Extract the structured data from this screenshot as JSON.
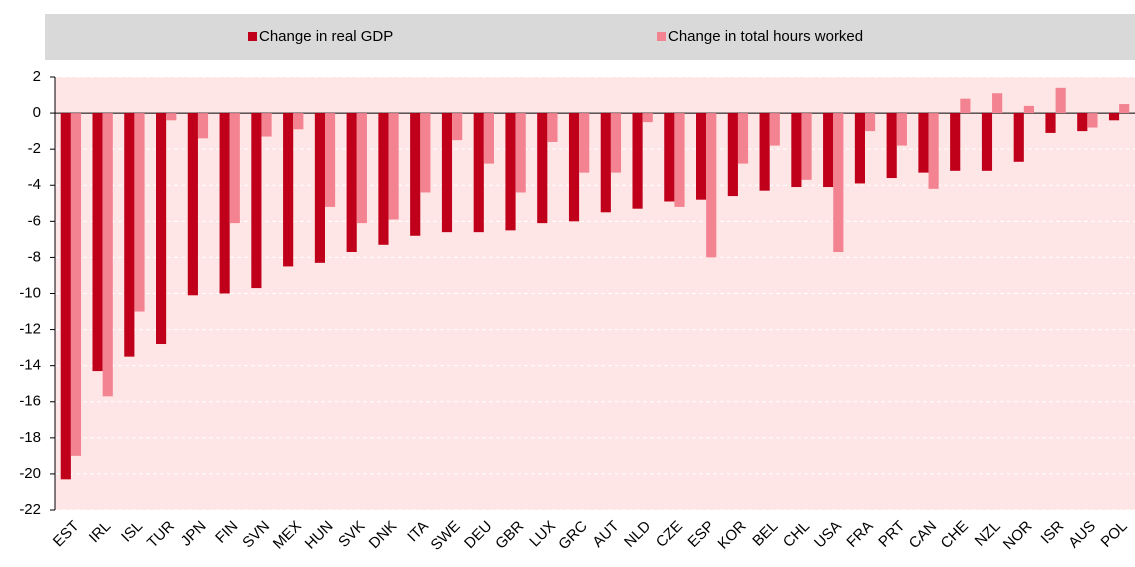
{
  "chart_data": {
    "type": "bar",
    "categories": [
      "EST",
      "IRL",
      "ISL",
      "TUR",
      "JPN",
      "FIN",
      "SVN",
      "MEX",
      "HUN",
      "SVK",
      "DNK",
      "ITA",
      "SWE",
      "DEU",
      "GBR",
      "LUX",
      "GRC",
      "AUT",
      "NLD",
      "CZE",
      "ESP",
      "KOR",
      "BEL",
      "CHL",
      "USA",
      "FRA",
      "PRT",
      "CAN",
      "CHE",
      "NZL",
      "NOR",
      "ISR",
      "AUS",
      "POL"
    ],
    "series": [
      {
        "name": "Change in real GDP",
        "color": "#c0001a",
        "values": [
          -20.3,
          -14.3,
          -13.5,
          -12.8,
          -10.1,
          -10.0,
          -9.7,
          -8.5,
          -8.3,
          -7.7,
          -7.3,
          -6.8,
          -6.6,
          -6.6,
          -6.5,
          -6.1,
          -6.0,
          -5.5,
          -5.3,
          -4.9,
          -4.8,
          -4.6,
          -4.3,
          -4.1,
          -4.1,
          -3.9,
          -3.6,
          -3.3,
          -3.2,
          -3.2,
          -2.7,
          -1.1,
          -1.0,
          -0.4
        ]
      },
      {
        "name": "Change in total hours worked",
        "color": "#f38391",
        "values": [
          -19.0,
          -15.7,
          -11.0,
          -0.4,
          -1.4,
          -6.1,
          -1.3,
          -0.9,
          -5.2,
          -6.1,
          -5.9,
          -4.4,
          -1.5,
          -2.8,
          -4.4,
          -1.6,
          -3.3,
          -3.3,
          -0.5,
          -5.2,
          -8.0,
          -2.8,
          -1.8,
          -3.7,
          -7.7,
          -1.0,
          -1.8,
          -4.2,
          0.8,
          1.1,
          0.4,
          1.4,
          -0.8,
          0.5
        ]
      }
    ],
    "ylim": [
      -22,
      2
    ],
    "yticks": [
      2,
      0,
      -2,
      -4,
      -6,
      -8,
      -10,
      -12,
      -14,
      -16,
      -18,
      -20,
      -22
    ],
    "grid": true
  }
}
